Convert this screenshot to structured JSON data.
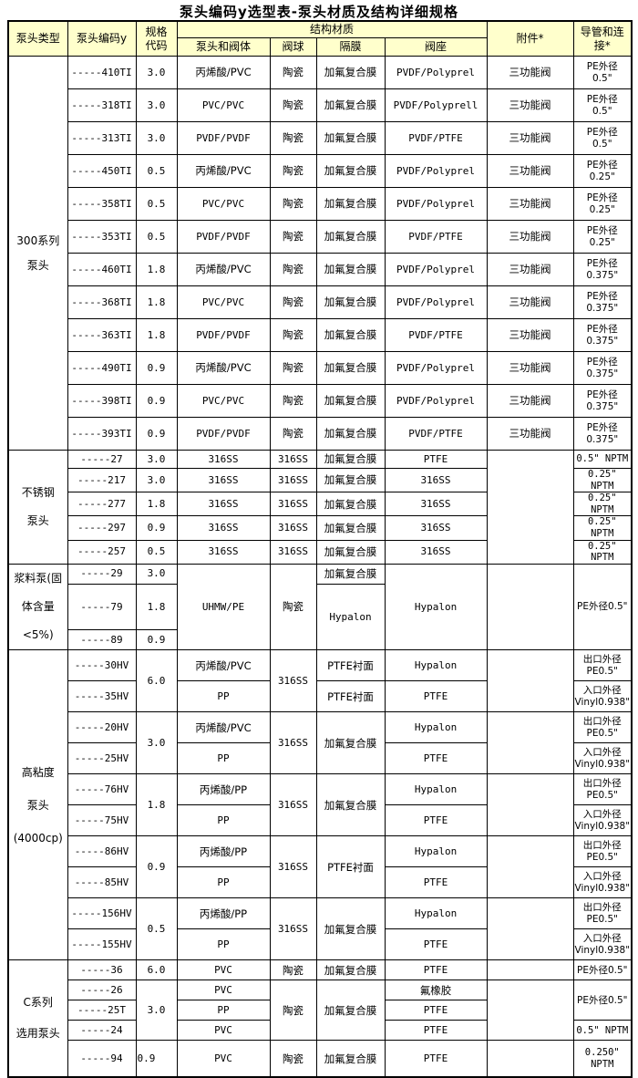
{
  "title": "泵头编码y选型表-泵头材质及结构详细规格",
  "header": {
    "pump_type": "泵头类型",
    "pump_code": "泵头编码y",
    "size_code": "规格\n代码",
    "structure_material": "结构材质",
    "head_valve_body": "泵头和阀体",
    "valve_ball": "阀球",
    "diaphragm": "隔膜",
    "valve_seat": "阀座",
    "accessory": "附件*",
    "tubing_connection": "导管和连\n接*"
  },
  "colors": {
    "header_bg": "#ffffcc",
    "grid": "#000000",
    "body_bg": "#ffffff"
  },
  "table": {
    "column_keys": [
      "code",
      "size",
      "body",
      "ball",
      "diaphragm",
      "seat",
      "accessory",
      "connection"
    ],
    "sections": [
      {
        "id": "series300",
        "label": "300系列\n泵头",
        "rows": [
          {
            "cells": [
              "-----410TI",
              "3.0",
              "丙烯酸/PVC",
              "陶瓷",
              "加氟复合膜",
              "PVDF/Polyprel",
              "三功能阀",
              "PE外径\n0.5\""
            ]
          },
          {
            "cells": [
              "-----318TI",
              "3.0",
              "PVC/PVC",
              "陶瓷",
              "加氟复合膜",
              "PVDF/Polyprell",
              "三功能阀",
              "PE外径\n0.5\""
            ]
          },
          {
            "cells": [
              "-----313TI",
              "3.0",
              "PVDF/PVDF",
              "陶瓷",
              "加氟复合膜",
              "PVDF/PTFE",
              "三功能阀",
              "PE外径\n0.5\""
            ]
          },
          {
            "cells": [
              "-----450TI",
              "0.5",
              "丙烯酸/PVC",
              "陶瓷",
              "加氟复合膜",
              "PVDF/Polyprel",
              "三功能阀",
              "PE外径\n0.25\""
            ]
          },
          {
            "cells": [
              "-----358TI",
              "0.5",
              "PVC/PVC",
              "陶瓷",
              "加氟复合膜",
              "PVDF/Polyprel",
              "三功能阀",
              "PE外径\n0.25\""
            ]
          },
          {
            "cells": [
              "-----353TI",
              "0.5",
              "PVDF/PVDF",
              "陶瓷",
              "加氟复合膜",
              "PVDF/PTFE",
              "三功能阀",
              "PE外径\n0.25\""
            ]
          },
          {
            "cells": [
              "-----460TI",
              "1.8",
              "丙烯酸/PVC",
              "陶瓷",
              "加氟复合膜",
              "PVDF/Polyprel",
              "三功能阀",
              "PE外径\n0.375\""
            ]
          },
          {
            "cells": [
              "-----368TI",
              "1.8",
              "PVC/PVC",
              "陶瓷",
              "加氟复合膜",
              "PVDF/Polyprel",
              "三功能阀",
              "PE外径\n0.375\""
            ]
          },
          {
            "cells": [
              "-----363TI",
              "1.8",
              "PVDF/PVDF",
              "陶瓷",
              "加氟复合膜",
              "PVDF/PTFE",
              "三功能阀",
              "PE外径\n0.375\""
            ]
          },
          {
            "cells": [
              "-----490TI",
              "0.9",
              "丙烯酸/PVC",
              "陶瓷",
              "加氟复合膜",
              "PVDF/Polyprel",
              "三功能阀",
              "PE外径\n0.375\""
            ]
          },
          {
            "cells": [
              "-----398TI",
              "0.9",
              "PVC/PVC",
              "陶瓷",
              "加氟复合膜",
              "PVDF/Polyprel",
              "三功能阀",
              "PE外径\n0.375\""
            ]
          },
          {
            "cells": [
              "-----393TI",
              "0.9",
              "PVDF/PVDF",
              "陶瓷",
              "加氟复合膜",
              "PVDF/PTFE",
              "三功能阀",
              "PE外径\n0.375\""
            ]
          }
        ]
      },
      {
        "id": "stainless",
        "label": "不锈钢\n泵头",
        "rows": [
          {
            "cells": [
              "-----27",
              "3.0",
              "316SS",
              "316SS",
              "加氟复合膜",
              "PTFE",
              {
                "t": "",
                "rs": 5
              },
              "0.5\" NPTM"
            ]
          },
          {
            "cells": [
              "-----217",
              "3.0",
              "316SS",
              "316SS",
              "加氟复合膜",
              "316SS",
              null,
              "0.25\" NPTM"
            ]
          },
          {
            "cells": [
              "-----277",
              "1.8",
              "316SS",
              "316SS",
              "加氟复合膜",
              "316SS",
              null,
              "0.25\" NPTM"
            ]
          },
          {
            "cells": [
              "-----297",
              "0.9",
              "316SS",
              "316SS",
              "加氟复合膜",
              "316SS",
              null,
              "0.25\" NPTM"
            ]
          },
          {
            "cells": [
              "-----257",
              "0.5",
              "316SS",
              "316SS",
              "加氟复合膜",
              "316SS",
              null,
              "0.25\" NPTM"
            ]
          }
        ]
      },
      {
        "id": "slurry",
        "label": "浆料泵(固\n体含量<5%)",
        "rows": [
          {
            "cells": [
              "-----29",
              "3.0",
              {
                "t": "UHMW/PE",
                "rs": 3
              },
              {
                "t": "陶瓷",
                "rs": 3
              },
              "加氟复合膜",
              {
                "t": "Hypalon",
                "rs": 3
              },
              {
                "t": "",
                "rs": 3
              },
              {
                "t": "PE外径0.5\"",
                "rs": 3
              }
            ]
          },
          {
            "cells": [
              "-----79",
              "1.8",
              null,
              null,
              {
                "t": "Hypalon",
                "rs": 2
              },
              null,
              null,
              null
            ]
          },
          {
            "cells": [
              "-----89",
              "0.9",
              null,
              null,
              null,
              null,
              null,
              null
            ]
          }
        ]
      },
      {
        "id": "hv",
        "label": "高粘度\n泵头\n(4000cp)",
        "rows": [
          {
            "cells": [
              "-----30HV",
              {
                "t": "6.0",
                "rs": 2
              },
              "丙烯酸/PVC",
              {
                "t": "316SS",
                "rs": 2
              },
              "PTFE衬面",
              "Hypalon",
              {
                "t": "",
                "rs": 2
              },
              "出口外径\nPE0.5\""
            ]
          },
          {
            "cells": [
              "-----35HV",
              null,
              "PP",
              null,
              "PTFE衬面",
              "PTFE",
              null,
              "入口外径\nVinyl0.938\""
            ]
          },
          {
            "cells": [
              "-----20HV",
              {
                "t": "3.0",
                "rs": 2
              },
              "丙烯酸/PVC",
              {
                "t": "316SS",
                "rs": 2
              },
              {
                "t": "加氟复合膜",
                "rs": 2
              },
              "Hypalon",
              {
                "t": "",
                "rs": 2
              },
              "出口外径\nPE0.5\""
            ]
          },
          {
            "cells": [
              "-----25HV",
              null,
              "PP",
              null,
              null,
              "PTFE",
              null,
              "入口外径\nVinyl0.938\""
            ]
          },
          {
            "cells": [
              "-----76HV",
              {
                "t": "1.8",
                "rs": 2
              },
              "丙烯酸/PP",
              {
                "t": "316SS",
                "rs": 2
              },
              {
                "t": "加氟复合膜",
                "rs": 2
              },
              "Hypalon",
              {
                "t": "",
                "rs": 2
              },
              "出口外径\nPE0.5\""
            ]
          },
          {
            "cells": [
              "-----75HV",
              null,
              "PP",
              null,
              null,
              "PTFE",
              null,
              "入口外径\nVinyl0.938\""
            ]
          },
          {
            "cells": [
              "-----86HV",
              {
                "t": "0.9",
                "rs": 2
              },
              "丙烯酸/PP",
              {
                "t": "316SS",
                "rs": 2
              },
              {
                "t": "PTFE衬面",
                "rs": 2
              },
              "Hypalon",
              {
                "t": "",
                "rs": 2
              },
              "出口外径\nPE0.5\""
            ]
          },
          {
            "cells": [
              "-----85HV",
              null,
              "PP",
              null,
              null,
              "PTFE",
              null,
              "入口外径\nVinyl0.938\""
            ]
          },
          {
            "cells": [
              "-----156HV",
              {
                "t": "0.5",
                "rs": 2
              },
              "丙烯酸/PP",
              {
                "t": "316SS",
                "rs": 2
              },
              {
                "t": "加氟复合膜",
                "rs": 2
              },
              "Hypalon",
              {
                "t": "",
                "rs": 2
              },
              "出口外径\nPE0.5\""
            ]
          },
          {
            "cells": [
              "-----155HV",
              null,
              "PP",
              null,
              null,
              "PTFE",
              null,
              "入口外径\nVinyl0.938\""
            ]
          }
        ]
      },
      {
        "id": "c",
        "label": "C系列\n选用泵头",
        "rows": [
          {
            "cells": [
              "-----36",
              "6.0",
              "PVC",
              "陶瓷",
              "加氟复合膜",
              "PTFE",
              "",
              "PE外径0.5\""
            ]
          },
          {
            "cells": [
              "-----26",
              {
                "t": "3.0",
                "rs": 3
              },
              "PVC",
              {
                "t": "陶瓷",
                "rs": 3
              },
              {
                "t": "加氟复合膜",
                "rs": 3
              },
              "氟橡胶",
              {
                "t": "",
                "rs": 3
              },
              {
                "t": "PE外径0.5\"",
                "rs": 2
              }
            ]
          },
          {
            "cells": [
              "-----25T",
              null,
              "PP",
              null,
              null,
              "PTFE",
              null,
              null
            ]
          },
          {
            "cells": [
              "-----24",
              null,
              "PVC",
              null,
              null,
              "PTFE",
              null,
              "0.5\" NPTM"
            ]
          },
          {
            "cells": [
              "-----94",
              {
                "t": "0.9",
                "align": "left"
              },
              "PVC",
              "陶瓷",
              "加氟复合膜",
              "PTFE",
              "",
              "0.250\"\nNPTM"
            ]
          }
        ]
      }
    ]
  }
}
